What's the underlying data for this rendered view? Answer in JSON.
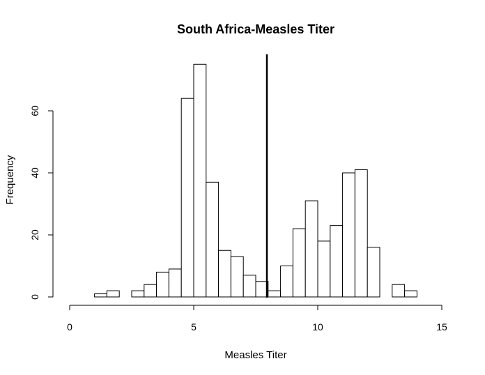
{
  "chart_data": {
    "type": "bar",
    "title": "South Africa-Measles Titer",
    "xlabel": "Measles Titer",
    "ylabel": "Frequency",
    "bin_width": 0.5,
    "bins": [
      {
        "start": 1.0,
        "end": 1.5,
        "count": 1
      },
      {
        "start": 1.5,
        "end": 2.0,
        "count": 2
      },
      {
        "start": 2.0,
        "end": 2.5,
        "count": 0
      },
      {
        "start": 2.5,
        "end": 3.0,
        "count": 2
      },
      {
        "start": 3.0,
        "end": 3.5,
        "count": 4
      },
      {
        "start": 3.5,
        "end": 4.0,
        "count": 8
      },
      {
        "start": 4.0,
        "end": 4.5,
        "count": 9
      },
      {
        "start": 4.5,
        "end": 5.0,
        "count": 64
      },
      {
        "start": 5.0,
        "end": 5.5,
        "count": 75
      },
      {
        "start": 5.5,
        "end": 6.0,
        "count": 37
      },
      {
        "start": 6.0,
        "end": 6.5,
        "count": 15
      },
      {
        "start": 6.5,
        "end": 7.0,
        "count": 13
      },
      {
        "start": 7.0,
        "end": 7.5,
        "count": 7
      },
      {
        "start": 7.5,
        "end": 8.0,
        "count": 5
      },
      {
        "start": 8.0,
        "end": 8.5,
        "count": 2
      },
      {
        "start": 8.5,
        "end": 9.0,
        "count": 10
      },
      {
        "start": 9.0,
        "end": 9.5,
        "count": 22
      },
      {
        "start": 9.5,
        "end": 10.0,
        "count": 31
      },
      {
        "start": 10.0,
        "end": 10.5,
        "count": 18
      },
      {
        "start": 10.5,
        "end": 11.0,
        "count": 23
      },
      {
        "start": 11.0,
        "end": 11.5,
        "count": 40
      },
      {
        "start": 11.5,
        "end": 12.0,
        "count": 41
      },
      {
        "start": 12.0,
        "end": 12.5,
        "count": 16
      },
      {
        "start": 12.5,
        "end": 13.0,
        "count": 0
      },
      {
        "start": 13.0,
        "end": 13.5,
        "count": 4
      },
      {
        "start": 13.5,
        "end": 14.0,
        "count": 2
      }
    ],
    "xlim": [
      0,
      15
    ],
    "ylim": [
      0,
      80
    ],
    "xticks": [
      0,
      5,
      10,
      15
    ],
    "yticks": [
      0,
      20,
      40,
      60
    ],
    "xtick_labels": [
      "0",
      "5",
      "10",
      "15"
    ],
    "ytick_labels": [
      "0",
      "20",
      "40",
      "60"
    ],
    "reference_line_x": 7.95,
    "grid": false,
    "legend": "none"
  }
}
